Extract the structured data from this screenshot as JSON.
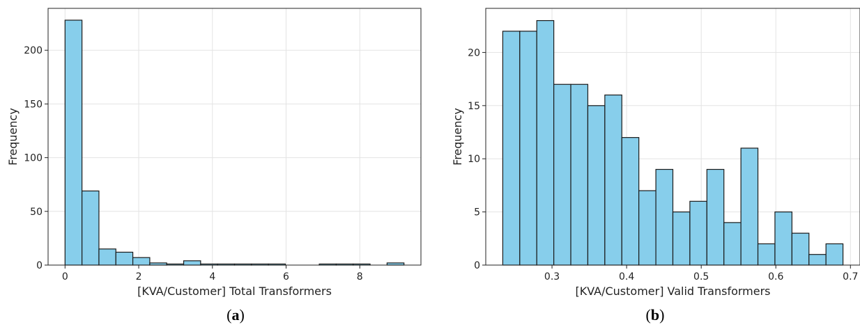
{
  "chart_data": [
    {
      "type": "bar",
      "panel": "a",
      "caption_letter": "a",
      "xlabel": "[KVA/Customer] Total Transformers",
      "ylabel": "Frequency",
      "bin_edges": [
        0.0,
        0.46,
        0.92,
        1.38,
        1.84,
        2.3,
        2.76,
        3.22,
        3.68,
        4.14,
        4.6,
        5.06,
        5.52,
        5.98,
        6.44,
        6.9,
        7.36,
        7.82,
        8.28,
        8.74,
        9.2
      ],
      "values": [
        228,
        69,
        15,
        12,
        7,
        2,
        1,
        4,
        1,
        1,
        1,
        1,
        1,
        0,
        0,
        1,
        1,
        1,
        0,
        2
      ],
      "xlim": [
        -0.46,
        9.66
      ],
      "ylim": [
        0,
        239
      ],
      "xticks": [
        0,
        2,
        4,
        6,
        8
      ],
      "yticks": [
        0,
        50,
        100,
        150,
        200
      ],
      "grid": true,
      "bar_color": "#87CEEB",
      "edge_color": "#1a1a1a"
    },
    {
      "type": "bar",
      "panel": "b",
      "caption_letter": "b",
      "xlabel": "[KVA/Customer] Valid Transformers",
      "ylabel": "Frequency",
      "bin_edges": [
        0.234,
        0.2568,
        0.2796,
        0.3024,
        0.3252,
        0.348,
        0.3708,
        0.3936,
        0.4164,
        0.4392,
        0.462,
        0.4848,
        0.5076,
        0.5304,
        0.5532,
        0.576,
        0.5988,
        0.6216,
        0.6444,
        0.6672,
        0.69
      ],
      "values": [
        22,
        22,
        23,
        17,
        17,
        15,
        16,
        12,
        7,
        9,
        5,
        6,
        9,
        4,
        11,
        2,
        5,
        3,
        1,
        2
      ],
      "xlim": [
        0.2112,
        0.7128
      ],
      "ylim": [
        0,
        24.15
      ],
      "xticks": [
        0.3,
        0.4,
        0.5,
        0.6,
        0.7
      ],
      "yticks": [
        0,
        5,
        10,
        15,
        20
      ],
      "grid": true,
      "bar_color": "#87CEEB",
      "edge_color": "#1a1a1a"
    }
  ]
}
